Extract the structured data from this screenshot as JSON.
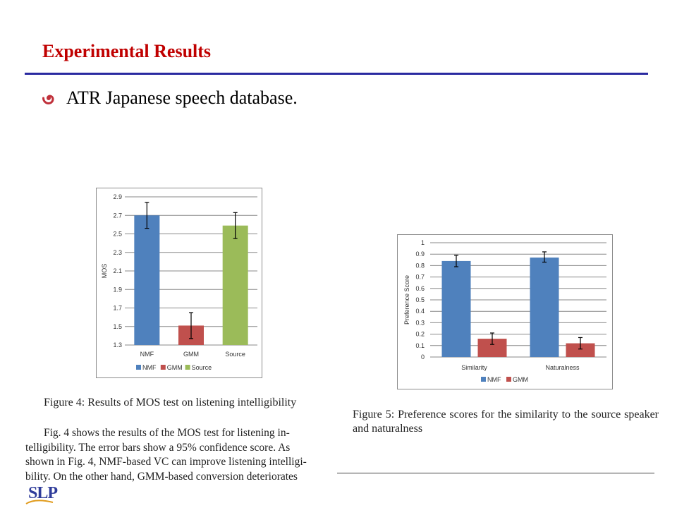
{
  "slide": {
    "title": "Experimental Results",
    "bullet": "ATR Japanese speech database."
  },
  "figures": {
    "fig4_caption": "Figure 4: Results of MOS test on listening intelligibility",
    "fig5_caption": "Figure 5:  Preference scores for the similarity to the source speaker and naturalness"
  },
  "paragraph": {
    "lines": [
      "Fig. 4 shows the results of the MOS test for listening in-",
      "telligibility. The error bars show a 95% confidence score. As",
      "shown in Fig. 4, NMF-based VC can improve listening intelligi-",
      "bility. On the other hand, GMM-based conversion deteriorates"
    ]
  },
  "logo": {
    "text": "SLP"
  },
  "colors": {
    "nmf": "#4f81bd",
    "gmm": "#c0504d",
    "source": "#9bbb59",
    "title": "#c00000",
    "rule": "#2a2aa0"
  },
  "chart_data": [
    {
      "type": "bar",
      "ylabel": "MOS",
      "xlabel": "",
      "categories": [
        "NMF",
        "GMM",
        "Source"
      ],
      "values": [
        2.7,
        1.51,
        2.59
      ],
      "error_low": [
        2.56,
        1.37,
        2.45
      ],
      "error_high": [
        2.84,
        1.65,
        2.73
      ],
      "colors": [
        "#4f81bd",
        "#c0504d",
        "#9bbb59"
      ],
      "ylim": [
        1.3,
        2.9
      ],
      "yticks": [
        "1.3",
        "1.5",
        "1.7",
        "1.9",
        "2.1",
        "2.3",
        "2.5",
        "2.7",
        "2.9"
      ],
      "legend": [
        "NMF",
        "GMM",
        "Source"
      ],
      "legend_position": "bottom",
      "grid": true
    },
    {
      "type": "bar",
      "ylabel": "Preference Score",
      "xlabel": "",
      "categories": [
        "Similarity",
        "Naturalness"
      ],
      "series": [
        {
          "name": "NMF",
          "values": [
            0.84,
            0.87
          ],
          "error_low": [
            0.79,
            0.83
          ],
          "error_high": [
            0.89,
            0.92
          ],
          "color": "#4f81bd"
        },
        {
          "name": "GMM",
          "values": [
            0.16,
            0.12
          ],
          "error_low": [
            0.11,
            0.07
          ],
          "error_high": [
            0.21,
            0.17
          ],
          "color": "#c0504d"
        }
      ],
      "ylim": [
        0,
        1
      ],
      "yticks": [
        "0",
        "0.1",
        "0.2",
        "0.3",
        "0.4",
        "0.5",
        "0.6",
        "0.7",
        "0.8",
        "0.9",
        "1"
      ],
      "legend_position": "bottom",
      "grid": true
    }
  ]
}
